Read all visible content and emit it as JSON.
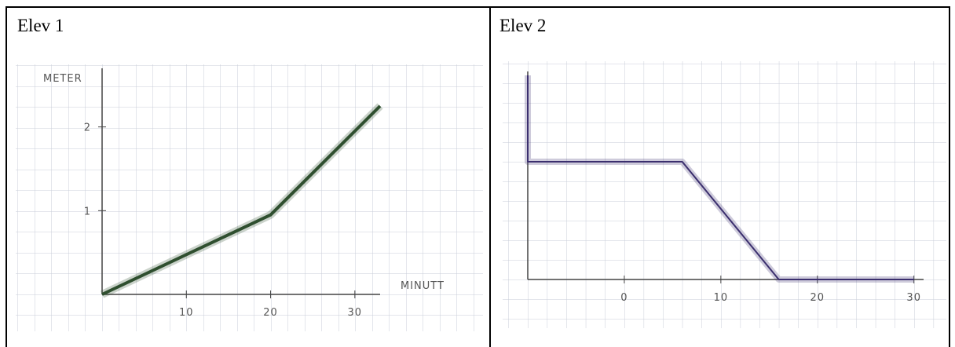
{
  "chart_data": [
    {
      "type": "line",
      "title": "Elev 1",
      "x_label": "MINUTT",
      "y_label": "METER",
      "x": [
        0,
        20,
        33
      ],
      "series": [
        {
          "values": [
            0,
            0.95,
            2.25
          ],
          "color": "#2f4f2f"
        }
      ],
      "xlim": [
        0,
        33
      ],
      "ylim": [
        0,
        2.7
      ],
      "xticks": [
        10,
        20,
        30
      ],
      "yticks": [
        1,
        2
      ]
    },
    {
      "type": "line",
      "title": "Elev 2",
      "x": [
        -10,
        -10,
        6,
        16,
        30
      ],
      "series": [
        {
          "values": [
            5.2,
            3,
            3,
            0,
            0
          ],
          "color": "#3b2f6e"
        }
      ],
      "xlim": [
        -10,
        31
      ],
      "ylim": [
        0,
        5.3
      ],
      "xticks": [
        0,
        10,
        20,
        30
      ]
    }
  ]
}
